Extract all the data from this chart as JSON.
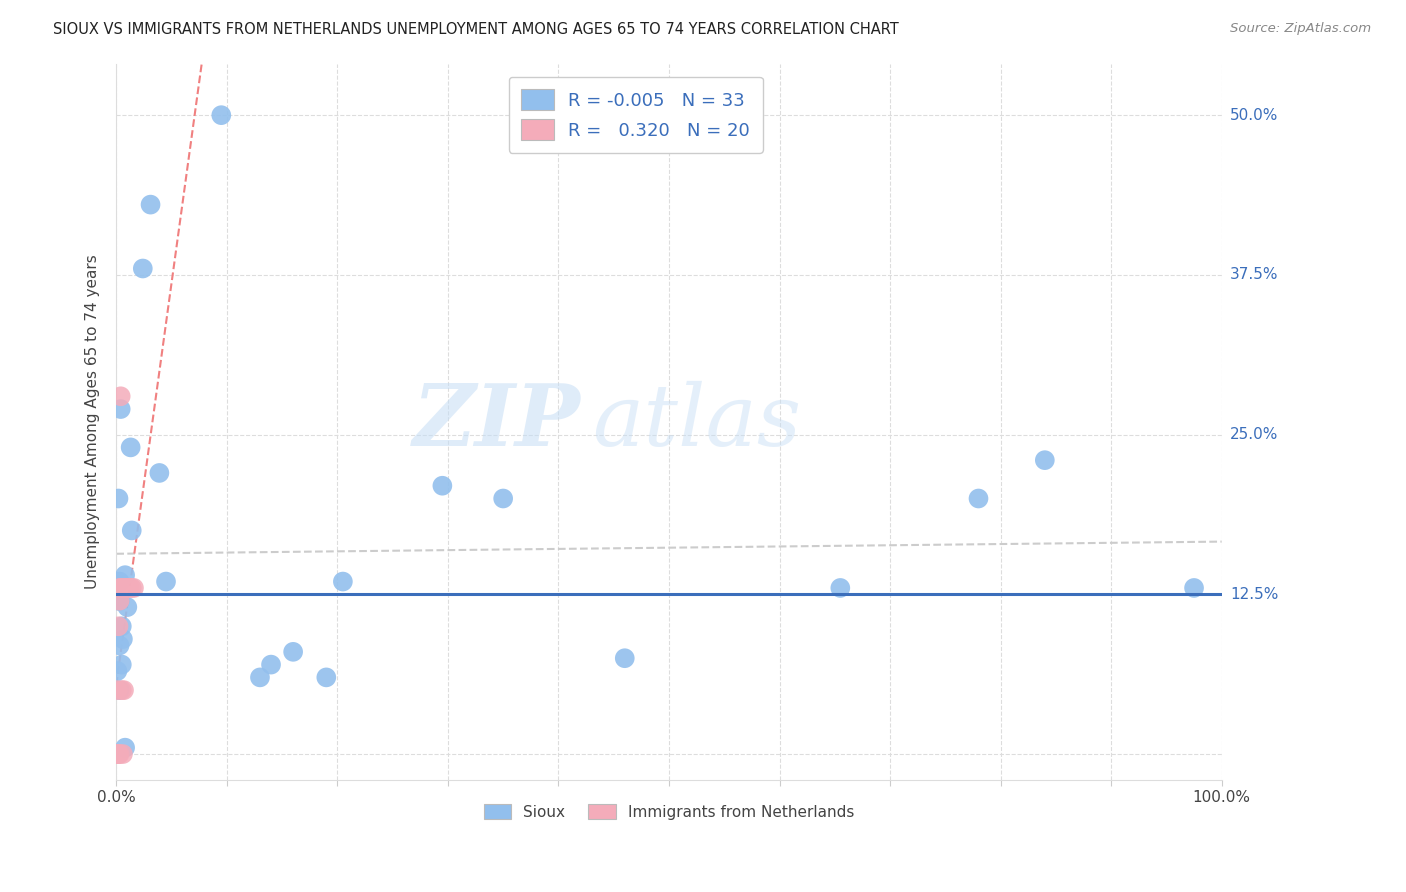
{
  "title": "SIOUX VS IMMIGRANTS FROM NETHERLANDS UNEMPLOYMENT AMONG AGES 65 TO 74 YEARS CORRELATION CHART",
  "source": "Source: ZipAtlas.com",
  "ylabel": "Unemployment Among Ages 65 to 74 years",
  "hline_y": 0.125,
  "hline_color": "#3B6EBB",
  "sioux_color": "#92BFED",
  "netherlands_color": "#F4ACBA",
  "trendline_sioux_color": "#CCCCCC",
  "trendline_neth_color": "#F08080",
  "legend_R_sioux": "-0.005",
  "legend_N_sioux": "33",
  "legend_R_netherlands": "0.320",
  "legend_N_netherlands": "20",
  "watermark_top": "ZIP",
  "watermark_bot": "atlas",
  "xlim": [
    0.0,
    1.0
  ],
  "ylim": [
    -0.02,
    0.54
  ],
  "right_labels": [
    [
      0.5,
      "50.0%"
    ],
    [
      0.375,
      "37.5%"
    ],
    [
      0.25,
      "25.0%"
    ],
    [
      0.125,
      "12.5%"
    ]
  ],
  "sioux_x": [
    0.008,
    0.024,
    0.014,
    0.031,
    0.004,
    0.003,
    0.002,
    0.001,
    0.003,
    0.006,
    0.003,
    0.01,
    0.005,
    0.039,
    0.013,
    0.005,
    0.002,
    0.008,
    0.003,
    0.095,
    0.045,
    0.205,
    0.14,
    0.13,
    0.16,
    0.19,
    0.295,
    0.35,
    0.46,
    0.655,
    0.78,
    0.84,
    0.975
  ],
  "sioux_y": [
    0.005,
    0.38,
    0.175,
    0.43,
    0.27,
    0.05,
    0.12,
    0.065,
    0.085,
    0.09,
    0.135,
    0.115,
    0.07,
    0.22,
    0.24,
    0.1,
    0.2,
    0.14,
    0.12,
    0.5,
    0.135,
    0.135,
    0.07,
    0.06,
    0.08,
    0.06,
    0.21,
    0.2,
    0.075,
    0.13,
    0.2,
    0.23,
    0.13
  ],
  "netherlands_x": [
    0.001,
    0.001,
    0.001,
    0.002,
    0.002,
    0.003,
    0.003,
    0.003,
    0.004,
    0.004,
    0.005,
    0.006,
    0.006,
    0.007,
    0.008,
    0.009,
    0.01,
    0.012,
    0.014,
    0.016
  ],
  "netherlands_y": [
    0.0,
    0.0,
    0.05,
    0.0,
    0.1,
    0.0,
    0.12,
    0.13,
    0.28,
    0.13,
    0.05,
    0.0,
    0.13,
    0.05,
    0.13,
    0.13,
    0.13,
    0.13,
    0.13,
    0.13
  ]
}
